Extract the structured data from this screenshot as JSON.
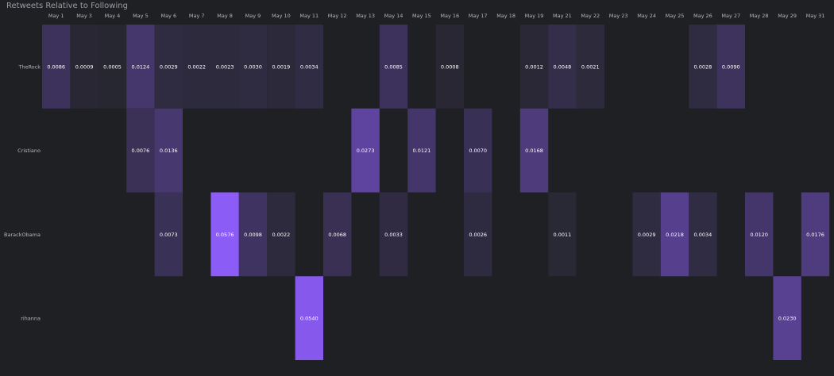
{
  "chart_data": {
    "type": "heatmap",
    "title": "Retweets Relative to Following",
    "x": [
      "May 1",
      "May 3",
      "May 4",
      "May 5",
      "May 6",
      "May 7",
      "May 8",
      "May 9",
      "May 10",
      "May 11",
      "May 12",
      "May 13",
      "May 14",
      "May 15",
      "May 16",
      "May 17",
      "May 18",
      "May 19",
      "May 21",
      "May 22",
      "May 23",
      "May 24",
      "May 25",
      "May 26",
      "May 27",
      "May 28",
      "May 29",
      "May 31"
    ],
    "y": [
      "TheRock",
      "Cristiano",
      "BarackObama",
      "rihanna"
    ],
    "cells": [
      {
        "row": "TheRock",
        "col": "May 1",
        "value": 0.0086,
        "label": "0.0086"
      },
      {
        "row": "TheRock",
        "col": "May 3",
        "value": 0.0009,
        "label": "0.0009"
      },
      {
        "row": "TheRock",
        "col": "May 4",
        "value": 0.0005,
        "label": "0.0005"
      },
      {
        "row": "TheRock",
        "col": "May 5",
        "value": 0.0124,
        "label": "0.0124"
      },
      {
        "row": "TheRock",
        "col": "May 6",
        "value": 0.0029,
        "label": "0.0029"
      },
      {
        "row": "TheRock",
        "col": "May 7",
        "value": 0.0022,
        "label": "0.0022"
      },
      {
        "row": "TheRock",
        "col": "May 8",
        "value": 0.0023,
        "label": "0.0023"
      },
      {
        "row": "TheRock",
        "col": "May 9",
        "value": 0.003,
        "label": "0.0030"
      },
      {
        "row": "TheRock",
        "col": "May 10",
        "value": 0.0019,
        "label": "0.0019"
      },
      {
        "row": "TheRock",
        "col": "May 11",
        "value": 0.0034,
        "label": "0.0034"
      },
      {
        "row": "TheRock",
        "col": "May 14",
        "value": 0.0085,
        "label": "0.0085"
      },
      {
        "row": "TheRock",
        "col": "May 16",
        "value": 0.0008,
        "label": "0.0008"
      },
      {
        "row": "TheRock",
        "col": "May 19",
        "value": 0.0012,
        "label": "0.0012"
      },
      {
        "row": "TheRock",
        "col": "May 21",
        "value": 0.0048,
        "label": "0.0048"
      },
      {
        "row": "TheRock",
        "col": "May 22",
        "value": 0.0021,
        "label": "0.0021"
      },
      {
        "row": "TheRock",
        "col": "May 26",
        "value": 0.0028,
        "label": "0.0028"
      },
      {
        "row": "TheRock",
        "col": "May 27",
        "value": 0.009,
        "label": "0.0090"
      },
      {
        "row": "Cristiano",
        "col": "May 5",
        "value": 0.0076,
        "label": "0.0076"
      },
      {
        "row": "Cristiano",
        "col": "May 6",
        "value": 0.0136,
        "label": "0.0136"
      },
      {
        "row": "Cristiano",
        "col": "May 13",
        "value": 0.0273,
        "label": "0.0273"
      },
      {
        "row": "Cristiano",
        "col": "May 15",
        "value": 0.0121,
        "label": "0.0121"
      },
      {
        "row": "Cristiano",
        "col": "May 17",
        "value": 0.007,
        "label": "0.0070"
      },
      {
        "row": "Cristiano",
        "col": "May 19",
        "value": 0.0168,
        "label": "0.0168"
      },
      {
        "row": "BarackObama",
        "col": "May 6",
        "value": 0.0073,
        "label": "0.0073"
      },
      {
        "row": "BarackObama",
        "col": "May 8",
        "value": 0.0576,
        "label": "0.0576"
      },
      {
        "row": "BarackObama",
        "col": "May 9",
        "value": 0.0098,
        "label": "0.0098"
      },
      {
        "row": "BarackObama",
        "col": "May 10",
        "value": 0.0022,
        "label": "0.0022"
      },
      {
        "row": "BarackObama",
        "col": "May 12",
        "value": 0.0068,
        "label": "0.0068"
      },
      {
        "row": "BarackObama",
        "col": "May 14",
        "value": 0.0033,
        "label": "0.0033"
      },
      {
        "row": "BarackObama",
        "col": "May 17",
        "value": 0.0026,
        "label": "0.0026"
      },
      {
        "row": "BarackObama",
        "col": "May 21",
        "value": 0.0011,
        "label": "0.0011"
      },
      {
        "row": "BarackObama",
        "col": "May 24",
        "value": 0.0029,
        "label": "0.0029"
      },
      {
        "row": "BarackObama",
        "col": "May 25",
        "value": 0.0218,
        "label": "0.0218"
      },
      {
        "row": "BarackObama",
        "col": "May 26",
        "value": 0.0034,
        "label": "0.0034"
      },
      {
        "row": "BarackObama",
        "col": "May 28",
        "value": 0.012,
        "label": "0.0120"
      },
      {
        "row": "BarackObama",
        "col": "May 31",
        "value": 0.0176,
        "label": "0.0176"
      },
      {
        "row": "rihanna",
        "col": "May 11",
        "value": 0.054,
        "label": "0.0540"
      },
      {
        "row": "rihanna",
        "col": "May 29",
        "value": 0.023,
        "label": "0.0230"
      }
    ],
    "color_min": "#24252b",
    "color_max": "#8b5cf6",
    "value_range": [
      0,
      0.0576
    ],
    "background": "#1f2024",
    "grid": false,
    "legend": "none"
  }
}
